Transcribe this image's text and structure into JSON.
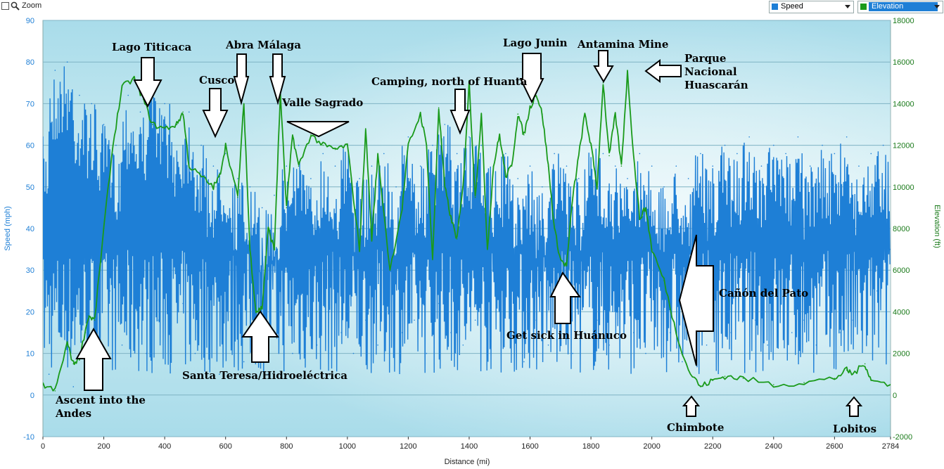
{
  "toolbar": {
    "zoom_label": "Zoom",
    "series_select_1": {
      "label": "Speed",
      "color": "#1e7fd6"
    },
    "series_select_2": {
      "label": "Elevation",
      "color": "#1a9a1a"
    }
  },
  "chart_data": {
    "type": "line",
    "xlabel": "Distance  (mi)",
    "ylabel_left": "Speed (mph)",
    "ylabel_right": "Elevation (ft)",
    "xlim": [
      0,
      2784
    ],
    "ylim_left": [
      -10,
      90
    ],
    "ylim_right": [
      -2000,
      18000
    ],
    "x_ticks": [
      "0",
      "200",
      "400",
      "600",
      "800",
      "1000",
      "1200",
      "1400",
      "1600",
      "1800",
      "2000",
      "2200",
      "2400",
      "2600",
      "2784"
    ],
    "y_ticks_left": [
      "-10",
      "0",
      "10",
      "20",
      "30",
      "40",
      "50",
      "60",
      "70",
      "80",
      "90"
    ],
    "y_ticks_right": [
      "-2000",
      "0",
      "2000",
      "4000",
      "6000",
      "8000",
      "10000",
      "12000",
      "14000",
      "16000",
      "18000"
    ],
    "grid": true,
    "series": [
      {
        "name": "Speed",
        "color": "#1e7fd6",
        "x": [
          0,
          20,
          40,
          60,
          80,
          100,
          120,
          140,
          160,
          180,
          200,
          220,
          240,
          260,
          280,
          300,
          320,
          340,
          360,
          380,
          400,
          420,
          440,
          460,
          480,
          500,
          520,
          540,
          560,
          580,
          600,
          620,
          640,
          660,
          680,
          700,
          720,
          740,
          760,
          780,
          800,
          820,
          840,
          860,
          880,
          900,
          920,
          940,
          960,
          980,
          1000,
          1020,
          1040,
          1060,
          1080,
          1100,
          1120,
          1140,
          1160,
          1180,
          1200,
          1220,
          1240,
          1260,
          1280,
          1300,
          1320,
          1340,
          1360,
          1380,
          1400,
          1420,
          1440,
          1460,
          1480,
          1500,
          1520,
          1540,
          1560,
          1580,
          1600,
          1620,
          1640,
          1660,
          1680,
          1700,
          1720,
          1740,
          1760,
          1780,
          1800,
          1820,
          1840,
          1860,
          1880,
          1900,
          1920,
          1940,
          1960,
          1980,
          2000,
          2020,
          2040,
          2060,
          2080,
          2100,
          2120,
          2140,
          2160,
          2180,
          2200,
          2220,
          2240,
          2260,
          2280,
          2300,
          2320,
          2340,
          2360,
          2380,
          2400,
          2420,
          2440,
          2460,
          2480,
          2500,
          2520,
          2540,
          2560,
          2580,
          2600,
          2620,
          2640,
          2660,
          2680,
          2700,
          2720,
          2740,
          2760,
          2784
        ],
        "y": [
          62,
          5,
          78,
          20,
          80,
          2,
          72,
          15,
          70,
          8,
          65,
          25,
          60,
          12,
          72,
          20,
          68,
          10,
          75,
          18,
          70,
          15,
          65,
          22,
          68,
          10,
          60,
          20,
          55,
          5,
          58,
          18,
          52,
          8,
          50,
          15,
          45,
          5,
          48,
          20,
          55,
          10,
          60,
          18,
          52,
          12,
          58,
          20,
          55,
          15,
          60,
          10,
          52,
          18,
          55,
          12,
          58,
          20,
          50,
          15,
          62,
          18,
          55,
          10,
          60,
          22,
          65,
          15,
          58,
          12,
          62,
          18,
          60,
          10,
          55,
          20,
          58,
          15,
          52,
          8,
          55,
          18,
          50,
          12,
          58,
          20,
          55,
          10,
          52,
          15,
          60,
          18,
          58,
          12,
          55,
          20,
          52,
          15,
          58,
          10,
          55,
          20,
          50,
          15,
          55,
          8,
          52,
          18,
          58,
          12,
          55,
          20,
          60,
          15,
          58,
          22,
          62,
          18,
          55,
          12,
          60,
          20,
          58,
          15,
          62,
          18,
          55,
          12,
          60,
          20,
          58,
          15,
          62,
          18,
          55,
          30,
          58,
          25,
          60,
          35
        ]
      },
      {
        "name": "Elevation",
        "color": "#1a9a1a",
        "x": [
          0,
          40,
          80,
          100,
          120,
          150,
          170,
          200,
          230,
          260,
          300,
          330,
          360,
          400,
          440,
          460,
          480,
          520,
          560,
          580,
          600,
          640,
          660,
          680,
          700,
          720,
          740,
          760,
          780,
          800,
          820,
          840,
          880,
          920,
          960,
          1000,
          1040,
          1060,
          1080,
          1100,
          1140,
          1180,
          1200,
          1240,
          1260,
          1280,
          1300,
          1320,
          1340,
          1360,
          1380,
          1400,
          1420,
          1440,
          1460,
          1480,
          1500,
          1520,
          1540,
          1560,
          1580,
          1600,
          1620,
          1640,
          1660,
          1680,
          1700,
          1720,
          1740,
          1760,
          1780,
          1800,
          1820,
          1840,
          1860,
          1880,
          1900,
          1920,
          1940,
          1960,
          1980,
          2000,
          2040,
          2080,
          2120,
          2160,
          2200,
          2240,
          2300,
          2400,
          2500,
          2600,
          2640,
          2660,
          2700,
          2720,
          2784
        ],
        "y": [
          500,
          200,
          2500,
          1500,
          1800,
          3800,
          3600,
          8000,
          12000,
          14800,
          15200,
          14200,
          13000,
          12800,
          13000,
          13600,
          11000,
          10500,
          10000,
          10500,
          12000,
          9500,
          14000,
          7000,
          4000,
          4200,
          8000,
          7000,
          14500,
          9000,
          12500,
          11000,
          12500,
          12000,
          11800,
          12000,
          7000,
          12800,
          7500,
          11500,
          6000,
          9000,
          12000,
          13500,
          12000,
          6500,
          13800,
          10000,
          8500,
          7500,
          10000,
          15000,
          9500,
          13500,
          7000,
          11000,
          12500,
          10500,
          11000,
          13500,
          12500,
          13800,
          14500,
          13500,
          11000,
          8000,
          6500,
          6200,
          9500,
          11500,
          13500,
          12000,
          10000,
          15000,
          11500,
          13500,
          11000,
          15500,
          11500,
          8500,
          9000,
          7000,
          5500,
          3000,
          1200,
          400,
          700,
          900,
          800,
          500,
          600,
          800,
          1200,
          1000,
          1500,
          700,
          500
        ]
      }
    ],
    "annotations": [
      "Lago Titicaca",
      "Cusco",
      "Abra Málaga",
      "Valle Sagrado",
      "Camping, north of Huanta",
      "Lago Junin",
      "Antamina Mine",
      "Parque",
      "Nacional",
      "Huascarán",
      "Santa Teresa/Hidroeléctrica",
      "Ascent into the",
      "Andes",
      "Get sick in Huánuco",
      "Cañón del Pato",
      "Chimbote",
      "Lobitos"
    ]
  }
}
